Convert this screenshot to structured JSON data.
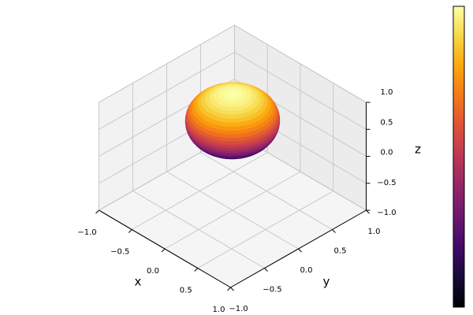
{
  "chart_data": {
    "type": "surface",
    "xlabel": "x",
    "ylabel": "y",
    "zlabel": "z",
    "xlim": [
      -1,
      1
    ],
    "ylim": [
      -1,
      1
    ],
    "zlim": [
      -1,
      1
    ],
    "xticks": [
      {
        "value": -1,
        "label": "−1.0"
      },
      {
        "value": -0.5,
        "label": "−0.5"
      },
      {
        "value": 0,
        "label": "0.0"
      },
      {
        "value": 0.5,
        "label": "0.5"
      },
      {
        "value": 1,
        "label": "1.0"
      }
    ],
    "yticks": [
      {
        "value": -1,
        "label": "−1.0"
      },
      {
        "value": -0.5,
        "label": "−0.5"
      },
      {
        "value": 0,
        "label": "0.0"
      },
      {
        "value": 0.5,
        "label": "0.5"
      },
      {
        "value": 1,
        "label": "1.0"
      }
    ],
    "zticks": [
      {
        "value": -1,
        "label": "−1.0"
      },
      {
        "value": -0.5,
        "label": "−0.5"
      },
      {
        "value": 0,
        "label": "0.0"
      },
      {
        "value": 0.5,
        "label": "0.5"
      },
      {
        "value": 1,
        "label": "1.0"
      }
    ],
    "surface": {
      "shape": "sphere",
      "center": [
        0,
        0,
        0.66
      ],
      "radius": 0.5
    },
    "colormap": "inferno",
    "clim": [
      0.16,
      1.16
    ],
    "grid": true,
    "colorbar": true
  }
}
